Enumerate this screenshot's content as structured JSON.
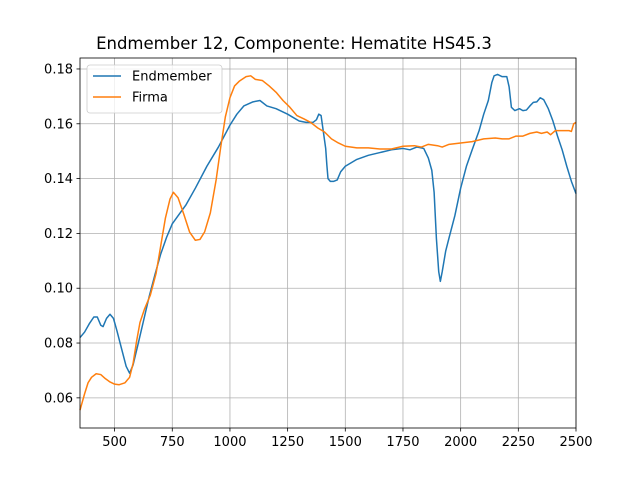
{
  "chart_data": {
    "type": "line",
    "title": "Endmember 12, Componente: Hematite HS45.3",
    "xlabel": "",
    "ylabel": "",
    "xlim": [
      350,
      2500
    ],
    "ylim": [
      0.049,
      0.184
    ],
    "grid": true,
    "legend_position": "top-left",
    "x_ticks": [
      500,
      750,
      1000,
      1250,
      1500,
      1750,
      2000,
      2250,
      2500
    ],
    "x_tick_labels": [
      "500",
      "750",
      "1000",
      "1250",
      "1500",
      "1750",
      "2000",
      "2250",
      "2500"
    ],
    "y_ticks": [
      0.06,
      0.08,
      0.1,
      0.12,
      0.14,
      0.16,
      0.18
    ],
    "y_tick_labels": [
      "0.06",
      "0.08",
      "0.10",
      "0.12",
      "0.14",
      "0.16",
      "0.18"
    ],
    "series": [
      {
        "name": "Endmember",
        "color": "#1f77b4",
        "points": [
          [
            350,
            0.082
          ],
          [
            370,
            0.084
          ],
          [
            390,
            0.087
          ],
          [
            410,
            0.0895
          ],
          [
            425,
            0.0895
          ],
          [
            440,
            0.0865
          ],
          [
            450,
            0.086
          ],
          [
            465,
            0.089
          ],
          [
            480,
            0.0905
          ],
          [
            495,
            0.089
          ],
          [
            510,
            0.0845
          ],
          [
            530,
            0.078
          ],
          [
            550,
            0.0715
          ],
          [
            565,
            0.069
          ],
          [
            580,
            0.072
          ],
          [
            600,
            0.079
          ],
          [
            625,
            0.088
          ],
          [
            650,
            0.097
          ],
          [
            675,
            0.105
          ],
          [
            700,
            0.1125
          ],
          [
            725,
            0.1185
          ],
          [
            750,
            0.1235
          ],
          [
            780,
            0.127
          ],
          [
            810,
            0.1305
          ],
          [
            850,
            0.1365
          ],
          [
            900,
            0.1445
          ],
          [
            950,
            0.1515
          ],
          [
            1000,
            0.1595
          ],
          [
            1030,
            0.1635
          ],
          [
            1060,
            0.1665
          ],
          [
            1100,
            0.168
          ],
          [
            1130,
            0.1685
          ],
          [
            1160,
            0.1665
          ],
          [
            1200,
            0.1655
          ],
          [
            1250,
            0.1635
          ],
          [
            1270,
            0.1625
          ],
          [
            1300,
            0.161
          ],
          [
            1330,
            0.1605
          ],
          [
            1360,
            0.1605
          ],
          [
            1375,
            0.1615
          ],
          [
            1385,
            0.1635
          ],
          [
            1395,
            0.163
          ],
          [
            1405,
            0.157
          ],
          [
            1415,
            0.151
          ],
          [
            1420,
            0.145
          ],
          [
            1425,
            0.14
          ],
          [
            1435,
            0.139
          ],
          [
            1450,
            0.139
          ],
          [
            1465,
            0.1395
          ],
          [
            1480,
            0.1425
          ],
          [
            1500,
            0.1445
          ],
          [
            1550,
            0.147
          ],
          [
            1600,
            0.1485
          ],
          [
            1650,
            0.1495
          ],
          [
            1700,
            0.1505
          ],
          [
            1750,
            0.151
          ],
          [
            1780,
            0.1505
          ],
          [
            1810,
            0.1515
          ],
          [
            1840,
            0.151
          ],
          [
            1860,
            0.1475
          ],
          [
            1875,
            0.143
          ],
          [
            1885,
            0.135
          ],
          [
            1895,
            0.118
          ],
          [
            1905,
            0.106
          ],
          [
            1912,
            0.1025
          ],
          [
            1920,
            0.106
          ],
          [
            1935,
            0.1135
          ],
          [
            1950,
            0.1185
          ],
          [
            1975,
            0.1265
          ],
          [
            2000,
            0.1365
          ],
          [
            2025,
            0.1445
          ],
          [
            2050,
            0.1505
          ],
          [
            2080,
            0.1575
          ],
          [
            2100,
            0.1635
          ],
          [
            2120,
            0.1685
          ],
          [
            2135,
            0.175
          ],
          [
            2145,
            0.1775
          ],
          [
            2160,
            0.178
          ],
          [
            2180,
            0.1772
          ],
          [
            2200,
            0.1772
          ],
          [
            2210,
            0.1735
          ],
          [
            2220,
            0.166
          ],
          [
            2235,
            0.1648
          ],
          [
            2255,
            0.1655
          ],
          [
            2270,
            0.1648
          ],
          [
            2285,
            0.165
          ],
          [
            2300,
            0.1665
          ],
          [
            2315,
            0.1678
          ],
          [
            2330,
            0.168
          ],
          [
            2345,
            0.1695
          ],
          [
            2360,
            0.1688
          ],
          [
            2380,
            0.1655
          ],
          [
            2400,
            0.161
          ],
          [
            2420,
            0.1555
          ],
          [
            2440,
            0.1505
          ],
          [
            2460,
            0.1445
          ],
          [
            2480,
            0.139
          ],
          [
            2500,
            0.1345
          ]
        ]
      },
      {
        "name": "Firma",
        "color": "#ff7f0e",
        "points": [
          [
            350,
            0.0555
          ],
          [
            360,
            0.0585
          ],
          [
            370,
            0.0615
          ],
          [
            385,
            0.0655
          ],
          [
            400,
            0.0675
          ],
          [
            420,
            0.0688
          ],
          [
            440,
            0.0685
          ],
          [
            460,
            0.067
          ],
          [
            480,
            0.0658
          ],
          [
            500,
            0.065
          ],
          [
            520,
            0.0648
          ],
          [
            545,
            0.0655
          ],
          [
            565,
            0.0675
          ],
          [
            580,
            0.0725
          ],
          [
            595,
            0.0805
          ],
          [
            610,
            0.0875
          ],
          [
            630,
            0.0925
          ],
          [
            655,
            0.0975
          ],
          [
            680,
            0.1055
          ],
          [
            700,
            0.1155
          ],
          [
            720,
            0.1255
          ],
          [
            740,
            0.1325
          ],
          [
            755,
            0.135
          ],
          [
            775,
            0.133
          ],
          [
            800,
            0.127
          ],
          [
            825,
            0.1205
          ],
          [
            850,
            0.1175
          ],
          [
            870,
            0.1178
          ],
          [
            890,
            0.1205
          ],
          [
            915,
            0.1275
          ],
          [
            940,
            0.1395
          ],
          [
            960,
            0.1515
          ],
          [
            980,
            0.1625
          ],
          [
            1000,
            0.1695
          ],
          [
            1020,
            0.1738
          ],
          [
            1040,
            0.1755
          ],
          [
            1070,
            0.1772
          ],
          [
            1090,
            0.1775
          ],
          [
            1110,
            0.1762
          ],
          [
            1140,
            0.1758
          ],
          [
            1170,
            0.1738
          ],
          [
            1200,
            0.1715
          ],
          [
            1230,
            0.1685
          ],
          [
            1260,
            0.166
          ],
          [
            1290,
            0.163
          ],
          [
            1320,
            0.1618
          ],
          [
            1350,
            0.1605
          ],
          [
            1380,
            0.1585
          ],
          [
            1410,
            0.157
          ],
          [
            1440,
            0.1545
          ],
          [
            1470,
            0.153
          ],
          [
            1500,
            0.1518
          ],
          [
            1550,
            0.1512
          ],
          [
            1600,
            0.1512
          ],
          [
            1650,
            0.1508
          ],
          [
            1700,
            0.1508
          ],
          [
            1750,
            0.1518
          ],
          [
            1800,
            0.152
          ],
          [
            1830,
            0.1515
          ],
          [
            1860,
            0.1525
          ],
          [
            1900,
            0.152
          ],
          [
            1920,
            0.1515
          ],
          [
            1950,
            0.1525
          ],
          [
            2000,
            0.153
          ],
          [
            2050,
            0.1535
          ],
          [
            2100,
            0.1545
          ],
          [
            2150,
            0.1548
          ],
          [
            2180,
            0.1545
          ],
          [
            2210,
            0.1545
          ],
          [
            2240,
            0.1555
          ],
          [
            2270,
            0.1555
          ],
          [
            2300,
            0.1565
          ],
          [
            2330,
            0.157
          ],
          [
            2350,
            0.1565
          ],
          [
            2375,
            0.157
          ],
          [
            2390,
            0.156
          ],
          [
            2410,
            0.1575
          ],
          [
            2440,
            0.1575
          ],
          [
            2470,
            0.1575
          ],
          [
            2480,
            0.1572
          ],
          [
            2490,
            0.16
          ],
          [
            2500,
            0.1605
          ]
        ]
      }
    ]
  }
}
